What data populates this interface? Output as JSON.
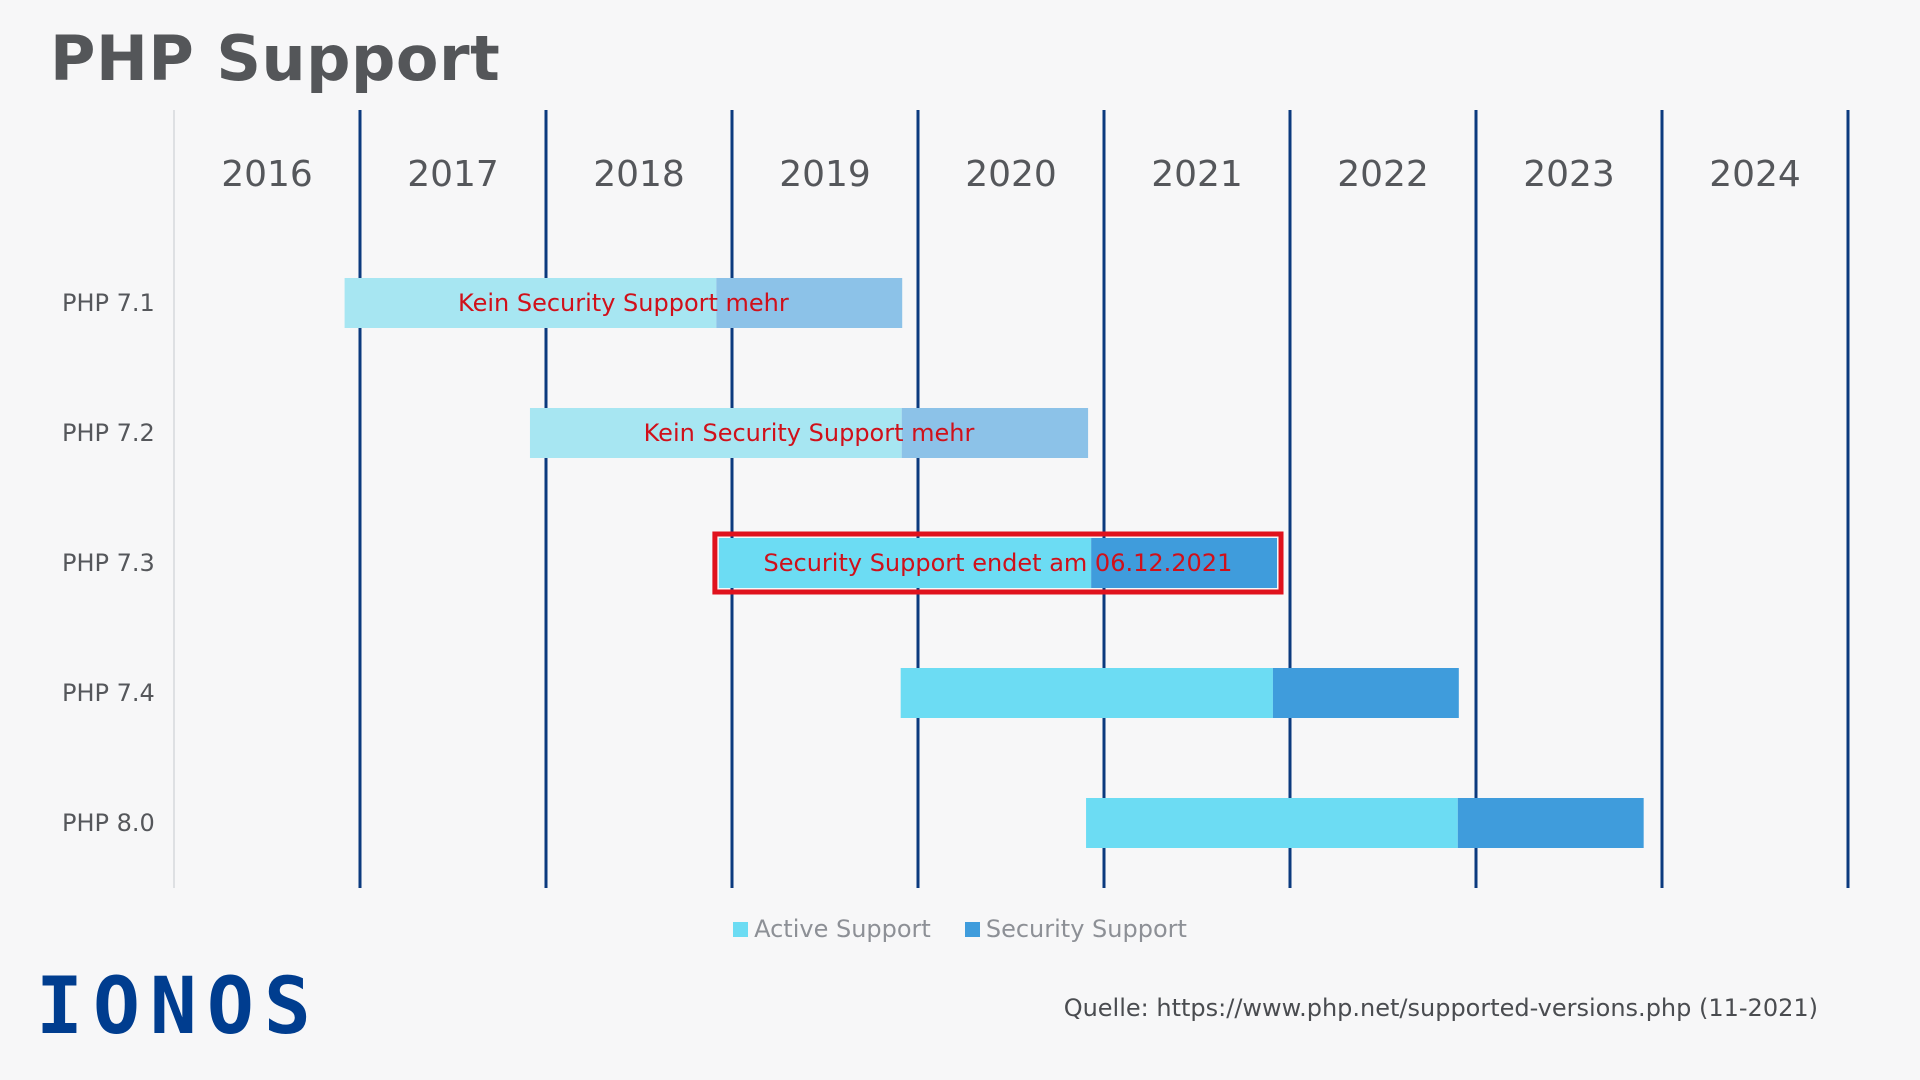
{
  "title": "PHP Support",
  "logo_text": "IONOS",
  "source": "Quelle: https://www.php.net/supported-versions.php (11-2021)",
  "colors": {
    "active": "#6cdcf3",
    "security": "#3f9cdc",
    "active_ended": "#a7e6f2",
    "security_ended": "#8cc2e8",
    "gridline": "#0b3a7e",
    "annotation_text": "#d0101a",
    "highlight_border": "#e0121d"
  },
  "chart_data": {
    "type": "gantt",
    "title": "PHP Support",
    "x_axis": {
      "categories": [
        "2016",
        "2017",
        "2018",
        "2019",
        "2020",
        "2021",
        "2022",
        "2023",
        "2024"
      ],
      "range": [
        "2016-01-01",
        "2025-01-01"
      ]
    },
    "rows": [
      {
        "label": "PHP 7.1",
        "active_start": "2016-12-01",
        "active_end": "2018-12-01",
        "security_end": "2019-12-01",
        "annotation": "Kein Security Support mehr",
        "status": "ended"
      },
      {
        "label": "PHP 7.2",
        "active_start": "2017-11-30",
        "active_end": "2019-11-30",
        "security_end": "2020-11-30",
        "annotation": "Kein Security Support mehr",
        "status": "ended"
      },
      {
        "label": "PHP 7.3",
        "active_start": "2018-12-06",
        "active_end": "2020-12-06",
        "security_end": "2021-12-06",
        "annotation": "Security Support endet am 06.12.2021",
        "status": "highlighted"
      },
      {
        "label": "PHP 7.4",
        "active_start": "2019-11-28",
        "active_end": "2021-11-28",
        "security_end": "2022-11-28",
        "annotation": "",
        "status": "current"
      },
      {
        "label": "PHP 8.0",
        "active_start": "2020-11-26",
        "active_end": "2022-11-26",
        "security_end": "2023-11-26",
        "annotation": "",
        "status": "current"
      }
    ],
    "legend": [
      {
        "name": "Active Support",
        "color": "#6cdcf3"
      },
      {
        "name": "Security Support",
        "color": "#3f9cdc"
      }
    ],
    "legend_position": "bottom-center"
  }
}
